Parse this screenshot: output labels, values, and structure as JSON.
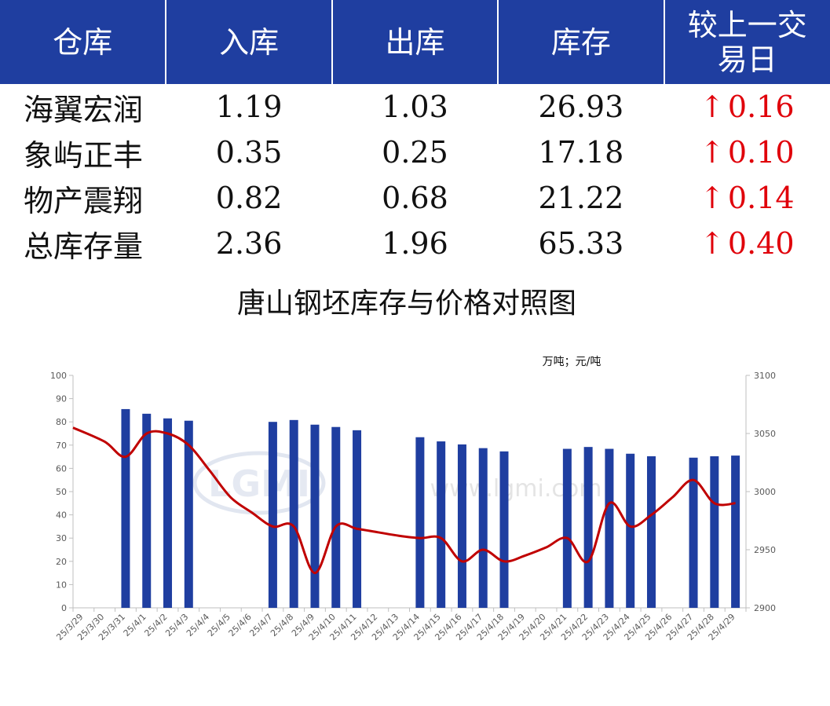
{
  "table": {
    "headers": [
      "仓库",
      "入库",
      "出库",
      "库存",
      "较上一交\n易日"
    ],
    "rows": [
      {
        "name": "海翼宏润",
        "in": "1.19",
        "out": "1.03",
        "stock": "26.93",
        "change": "0.16",
        "change_icon": "up-arrow-icon"
      },
      {
        "name": "象屿正丰",
        "in": "0.35",
        "out": "0.25",
        "stock": "17.18",
        "change": "0.10",
        "change_icon": "up-arrow-icon"
      },
      {
        "name": "物产震翔",
        "in": "0.82",
        "out": "0.68",
        "stock": "21.22",
        "change": "0.14",
        "change_icon": "up-arrow-icon"
      },
      {
        "name": "总库存量",
        "in": "2.36",
        "out": "1.96",
        "stock": "65.33",
        "change": "0.40",
        "change_icon": "up-arrow-icon"
      }
    ],
    "colors": {
      "header_bg": "#1f3ea0",
      "header_text": "#ffffff",
      "change": "#e0000a"
    }
  },
  "watermark": {
    "logo": "LGMI",
    "url": "www.lgmi.com"
  },
  "chart_data": {
    "type": "bar",
    "title": "唐山钢坯库存与价格对照图",
    "unit_label": "万吨；元/吨",
    "categories": [
      "25/3/29",
      "25/3/30",
      "25/3/31",
      "25/4/1",
      "25/4/2",
      "25/4/3",
      "25/4/4",
      "25/4/5",
      "25/4/6",
      "25/4/7",
      "25/4/8",
      "25/4/9",
      "25/4/10",
      "25/4/11",
      "25/4/12",
      "25/4/13",
      "25/4/14",
      "25/4/15",
      "25/4/16",
      "25/4/17",
      "25/4/18",
      "25/4/19",
      "25/4/20",
      "25/4/21",
      "25/4/22",
      "25/4/23",
      "25/4/24",
      "25/4/25",
      "25/4/26",
      "25/4/27",
      "25/4/28",
      "25/4/29"
    ],
    "series": [
      {
        "type": "bar",
        "axis": "left",
        "color": "#1f3ea0",
        "values": [
          null,
          null,
          85.5,
          83.5,
          81.5,
          80.5,
          null,
          null,
          null,
          80,
          80.8,
          78.8,
          77.8,
          76.4,
          null,
          null,
          73.4,
          71.6,
          70.3,
          68.7,
          67.3,
          null,
          null,
          68.4,
          69.2,
          68.4,
          66.3,
          65.2,
          null,
          64.6,
          65.2,
          65.5
        ]
      },
      {
        "type": "line",
        "axis": "right",
        "color": "#c00000",
        "values": [
          3055,
          3043,
          3030,
          3050,
          3050,
          3040,
          3018,
          2995,
          2982,
          2970,
          2970,
          2930,
          2970,
          2968,
          2965,
          2962,
          2960,
          2960,
          2940,
          2950,
          2940,
          2945,
          2952,
          2960,
          2940,
          2990,
          2970,
          2980,
          2995,
          3010,
          2990,
          2990
        ]
      }
    ],
    "ylim_left": [
      0,
      100
    ],
    "yticks_left": [
      0,
      10,
      20,
      30,
      40,
      50,
      60,
      70,
      80,
      90,
      100
    ],
    "ylim_right": [
      2900,
      3100
    ],
    "yticks_right": [
      2900,
      2950,
      3000,
      3050,
      3100
    ],
    "grid": false,
    "legend": "none"
  }
}
